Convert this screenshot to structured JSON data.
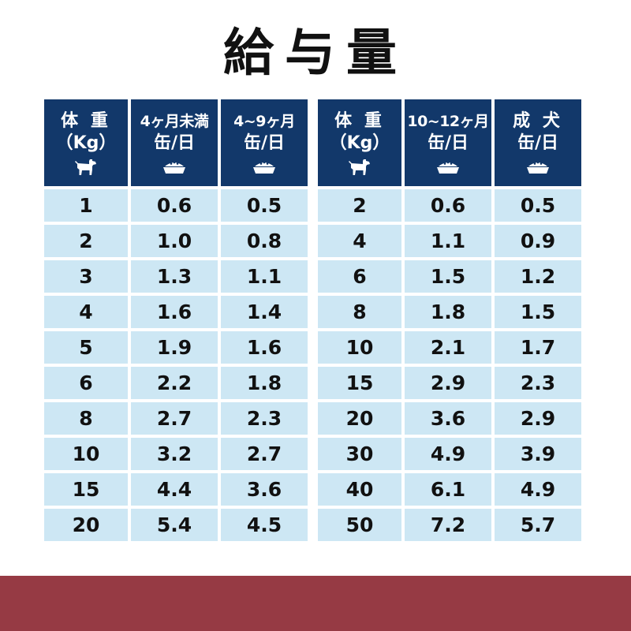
{
  "title": "給与量",
  "left_table": {
    "headers": [
      {
        "line1": "体 重",
        "line2": "（Kg）",
        "icon": "dog-icon"
      },
      {
        "line1": "4ヶ月未満",
        "line2": "缶/日",
        "icon": "food-bowl-icon"
      },
      {
        "line1": "4~9ヶ月",
        "line2": "缶/日",
        "icon": "food-bowl-icon"
      }
    ],
    "rows": [
      [
        "1",
        "0.6",
        "0.5"
      ],
      [
        "2",
        "1.0",
        "0.8"
      ],
      [
        "3",
        "1.3",
        "1.1"
      ],
      [
        "4",
        "1.6",
        "1.4"
      ],
      [
        "5",
        "1.9",
        "1.6"
      ],
      [
        "6",
        "2.2",
        "1.8"
      ],
      [
        "8",
        "2.7",
        "2.3"
      ],
      [
        "10",
        "3.2",
        "2.7"
      ],
      [
        "15",
        "4.4",
        "3.6"
      ],
      [
        "20",
        "5.4",
        "4.5"
      ]
    ]
  },
  "right_table": {
    "headers": [
      {
        "line1": "体 重",
        "line2": "（Kg）",
        "icon": "dog-icon"
      },
      {
        "line1": "10~12ヶ月",
        "line2": "缶/日",
        "icon": "food-bowl-icon"
      },
      {
        "line1": "成 犬",
        "line2": "缶/日",
        "icon": "food-bowl-icon"
      }
    ],
    "rows": [
      [
        "2",
        "0.6",
        "0.5"
      ],
      [
        "4",
        "1.1",
        "0.9"
      ],
      [
        "6",
        "1.5",
        "1.2"
      ],
      [
        "8",
        "1.8",
        "1.5"
      ],
      [
        "10",
        "2.1",
        "1.7"
      ],
      [
        "15",
        "2.9",
        "2.3"
      ],
      [
        "20",
        "3.6",
        "2.9"
      ],
      [
        "30",
        "4.9",
        "3.9"
      ],
      [
        "40",
        "6.1",
        "4.9"
      ],
      [
        "50",
        "7.2",
        "5.7"
      ]
    ]
  },
  "colors": {
    "header_bg": "#12386a",
    "cell_bg": "#cde7f4",
    "band": "#963a44"
  }
}
